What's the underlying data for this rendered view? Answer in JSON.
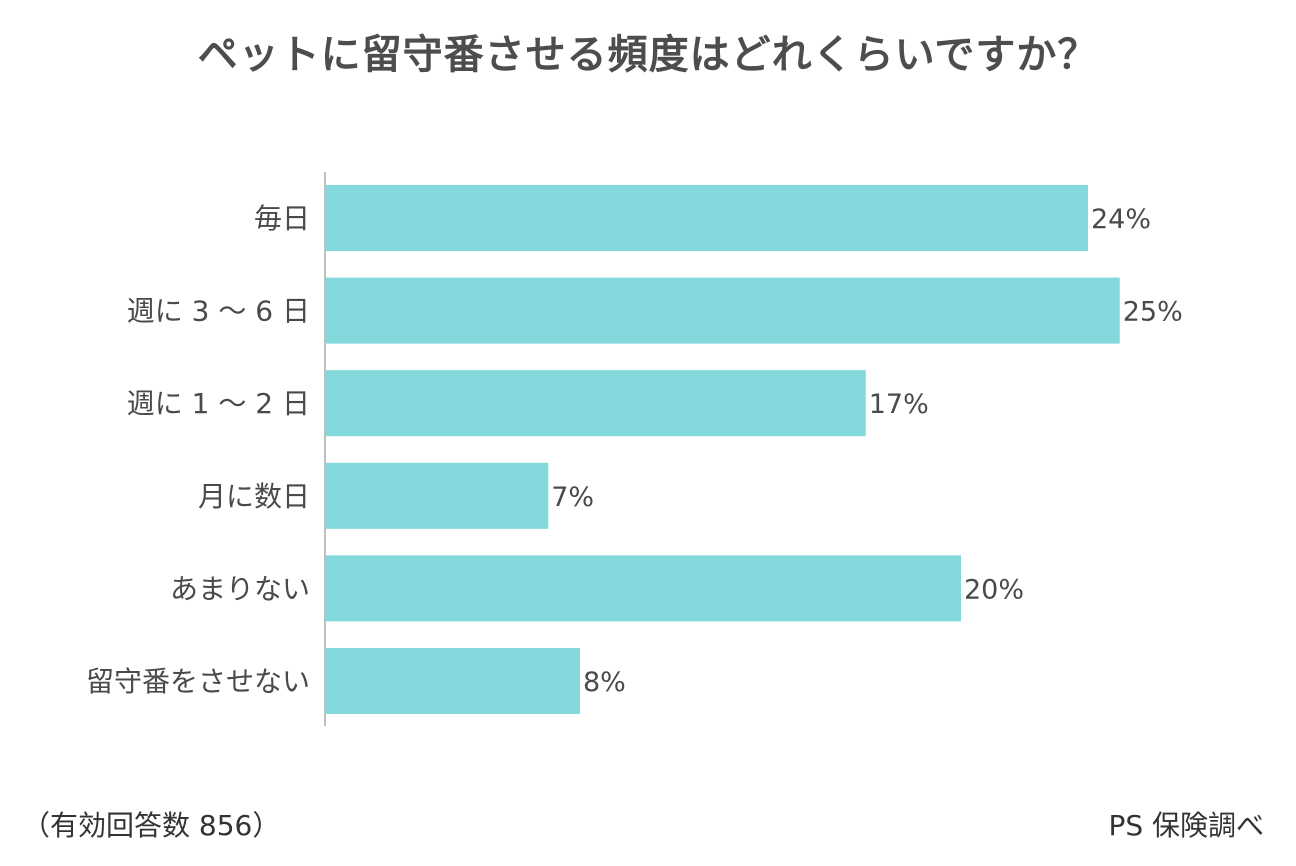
{
  "header": {
    "title": "ペットに留守番させる頻度はどれくらいですか？"
  },
  "footer": {
    "note": "（有効回答数 856）",
    "source": "PS 保険調べ"
  },
  "colors": {
    "bar": "#82D8DB",
    "axis": "#bfbfbf",
    "text": "#4a4a4a"
  },
  "chart_data": {
    "type": "bar",
    "orientation": "horizontal",
    "title": "ペットに留守番させる頻度はどれくらいですか？",
    "categories": [
      "毎日",
      "週に 3 ～ 6 日",
      "週に 1 ～ 2 日",
      "月に数日",
      "あまりない",
      "留守番をさせない"
    ],
    "values": [
      24,
      25,
      17,
      7,
      20,
      8
    ],
    "value_suffix": "%",
    "xlabel": "",
    "ylabel": "",
    "xlim": [
      0,
      30
    ],
    "grid": false,
    "legend": "none"
  }
}
